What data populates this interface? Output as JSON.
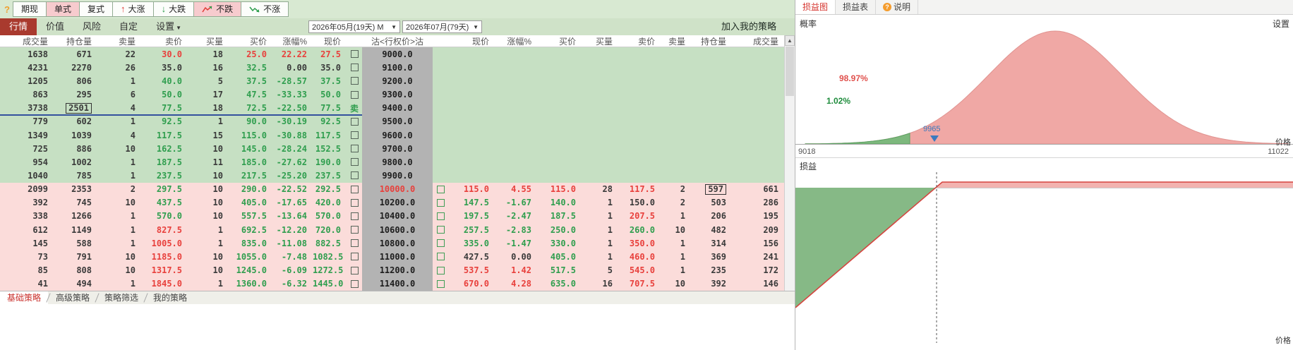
{
  "app": {
    "help_icon": "?"
  },
  "toolbar": {
    "buttons": [
      {
        "label": "期现",
        "active": false
      },
      {
        "label": "单式",
        "active": true
      },
      {
        "label": "复式",
        "active": false
      },
      {
        "label": "大涨",
        "active": false,
        "icon": "up-arrow"
      },
      {
        "label": "大跌",
        "active": false,
        "icon": "down-arrow"
      },
      {
        "label": "不跌",
        "active": true,
        "icon": "trend-up"
      },
      {
        "label": "不涨",
        "active": false,
        "icon": "trend-down"
      }
    ]
  },
  "menubar": {
    "items": [
      {
        "label": "行情",
        "active": true
      },
      {
        "label": "价值",
        "active": false
      },
      {
        "label": "风险",
        "active": false
      },
      {
        "label": "自定",
        "active": false
      },
      {
        "label": "设置",
        "active": false,
        "dropdown": true
      }
    ],
    "expiry_selects": [
      "2026年05月(19天) M",
      "2026年07月(79天)"
    ],
    "add_to_strategy": "加入我的策略"
  },
  "table": {
    "headers_left": [
      "成交量",
      "持仓量",
      "卖量",
      "卖价",
      "买量",
      "买价",
      "涨幅%",
      "现价"
    ],
    "header_strike": "沽<行权价>沽",
    "headers_right": [
      "现价",
      "涨幅%",
      "买价",
      "买量",
      "卖价",
      "卖量",
      "持仓量",
      "成交量"
    ],
    "sell_marker": "卖",
    "rows": [
      {
        "strike": "9000.0",
        "sc": "k",
        "check": "box",
        "sep": false,
        "call": [
          "1638|k",
          "671|k",
          "22|k",
          "30.0|r",
          "18|k",
          "25.0|r",
          "22.22|r",
          "27.5|r"
        ],
        "put": []
      },
      {
        "strike": "9100.0",
        "sc": "k",
        "check": "box",
        "sep": false,
        "call": [
          "4231|k",
          "2270|k",
          "26|k",
          "35.0|k",
          "16|k",
          "32.5|g",
          "0.00|k",
          "35.0|k"
        ],
        "put": []
      },
      {
        "strike": "9200.0",
        "sc": "k",
        "check": "box",
        "sep": false,
        "call": [
          "1205|k",
          "806|k",
          "1|k",
          "40.0|g",
          "5|k",
          "37.5|g",
          "-28.57|g",
          "37.5|g"
        ],
        "put": []
      },
      {
        "strike": "9300.0",
        "sc": "k",
        "check": "box",
        "sep": false,
        "call": [
          "863|k",
          "295|k",
          "6|k",
          "50.0|g",
          "17|k",
          "47.5|g",
          "-33.33|g",
          "50.0|g"
        ],
        "put": []
      },
      {
        "strike": "9400.0",
        "sc": "k",
        "check": "sell",
        "sep": true,
        "call": [
          "3738|k",
          "2501|k|b",
          "4|k",
          "77.5|g",
          "18|k",
          "72.5|g",
          "-22.50|g",
          "77.5|g"
        ],
        "put": []
      },
      {
        "strike": "9500.0",
        "sc": "k",
        "check": "box",
        "sep": false,
        "call": [
          "779|k",
          "602|k",
          "1|k",
          "92.5|g",
          "1|k",
          "90.0|g",
          "-30.19|g",
          "92.5|g"
        ],
        "put": []
      },
      {
        "strike": "9600.0",
        "sc": "k",
        "check": "box",
        "sep": false,
        "call": [
          "1349|k",
          "1039|k",
          "4|k",
          "117.5|g",
          "15|k",
          "115.0|g",
          "-30.88|g",
          "117.5|g"
        ],
        "put": []
      },
      {
        "strike": "9700.0",
        "sc": "k",
        "check": "box",
        "sep": false,
        "call": [
          "725|k",
          "886|k",
          "10|k",
          "162.5|g",
          "10|k",
          "145.0|g",
          "-28.24|g",
          "152.5|g"
        ],
        "put": []
      },
      {
        "strike": "9800.0",
        "sc": "k",
        "check": "box",
        "sep": false,
        "call": [
          "954|k",
          "1002|k",
          "1|k",
          "187.5|g",
          "11|k",
          "185.0|g",
          "-27.62|g",
          "190.0|g"
        ],
        "put": []
      },
      {
        "strike": "9900.0",
        "sc": "k",
        "check": "box",
        "sep": false,
        "call": [
          "1040|k",
          "785|k",
          "1|k",
          "237.5|g",
          "10|k",
          "217.5|g",
          "-25.20|g",
          "237.5|g"
        ],
        "put": []
      },
      {
        "strike": "10000.0",
        "sc": "r",
        "check": "box",
        "sep": false,
        "call": [
          "2099|k",
          "2353|k",
          "2|k",
          "297.5|g",
          "10|k",
          "290.0|g",
          "-22.52|g",
          "292.5|g"
        ],
        "put": [
          "115.0|r",
          "4.55|r",
          "115.0|r",
          "28|k",
          "117.5|r",
          "2|k",
          "597|k|b",
          "661|k"
        ]
      },
      {
        "strike": "10200.0",
        "sc": "k",
        "check": "box",
        "sep": false,
        "call": [
          "392|k",
          "745|k",
          "10|k",
          "437.5|g",
          "10|k",
          "405.0|g",
          "-17.65|g",
          "420.0|g"
        ],
        "put": [
          "147.5|g",
          "-1.67|g",
          "140.0|g",
          "1|k",
          "150.0|k",
          "2|k",
          "503|k",
          "286|k"
        ]
      },
      {
        "strike": "10400.0",
        "sc": "k",
        "check": "box",
        "sep": false,
        "call": [
          "338|k",
          "1266|k",
          "1|k",
          "570.0|g",
          "10|k",
          "557.5|g",
          "-13.64|g",
          "570.0|g"
        ],
        "put": [
          "197.5|g",
          "-2.47|g",
          "187.5|g",
          "1|k",
          "207.5|r",
          "1|k",
          "206|k",
          "195|k"
        ]
      },
      {
        "strike": "10600.0",
        "sc": "k",
        "check": "box",
        "sep": false,
        "call": [
          "612|k",
          "1149|k",
          "1|k",
          "827.5|r",
          "1|k",
          "692.5|g",
          "-12.20|g",
          "720.0|g"
        ],
        "put": [
          "257.5|g",
          "-2.83|g",
          "250.0|g",
          "1|k",
          "260.0|g",
          "10|k",
          "482|k",
          "209|k"
        ]
      },
      {
        "strike": "10800.0",
        "sc": "k",
        "check": "box",
        "sep": false,
        "call": [
          "145|k",
          "588|k",
          "1|k",
          "1005.0|r",
          "1|k",
          "835.0|g",
          "-11.08|g",
          "882.5|g"
        ],
        "put": [
          "335.0|g",
          "-1.47|g",
          "330.0|g",
          "1|k",
          "350.0|r",
          "1|k",
          "314|k",
          "156|k"
        ]
      },
      {
        "strike": "11000.0",
        "sc": "k",
        "check": "box",
        "sep": false,
        "call": [
          "73|k",
          "791|k",
          "10|k",
          "1185.0|r",
          "10|k",
          "1055.0|g",
          "-7.48|g",
          "1082.5|g"
        ],
        "put": [
          "427.5|k",
          "0.00|k",
          "405.0|g",
          "1|k",
          "460.0|r",
          "1|k",
          "369|k",
          "241|k"
        ]
      },
      {
        "strike": "11200.0",
        "sc": "k",
        "check": "box",
        "sep": false,
        "call": [
          "85|k",
          "808|k",
          "10|k",
          "1317.5|r",
          "10|k",
          "1245.0|g",
          "-6.09|g",
          "1272.5|g"
        ],
        "put": [
          "537.5|r",
          "1.42|r",
          "517.5|g",
          "5|k",
          "545.0|r",
          "1|k",
          "235|k",
          "172|k"
        ]
      },
      {
        "strike": "11400.0",
        "sc": "k",
        "check": "box",
        "sep": false,
        "call": [
          "41|k",
          "494|k",
          "1|k",
          "1845.0|r",
          "1|k",
          "1360.0|g",
          "-6.32|g",
          "1445.0|g"
        ],
        "put": [
          "670.0|r",
          "4.28|r",
          "635.0|g",
          "16|k",
          "707.5|r",
          "10|k",
          "392|k",
          "146|k"
        ]
      }
    ]
  },
  "sheet_tabs": [
    {
      "label": "基础策略",
      "active": true
    },
    {
      "label": "高级策略",
      "active": false
    },
    {
      "label": "策略筛选",
      "active": false
    },
    {
      "label": "我的策略",
      "active": false
    }
  ],
  "panel": {
    "tabs": [
      {
        "label": "损益图",
        "active": true
      },
      {
        "label": "损益表",
        "active": false
      },
      {
        "label": "说明",
        "active": false,
        "icon": "help"
      }
    ],
    "probability_label": "概率",
    "settings_label": "设置",
    "prob_above": "98.97%",
    "prob_below": "1.02%",
    "marked_price": "9965",
    "axis_min": "9018",
    "axis_max": "11022",
    "price_label": "价格",
    "payoff_label": "损益",
    "payoff_price_label": "价格"
  },
  "chart_data": [
    {
      "type": "area",
      "name": "probability_distribution",
      "title": "概率",
      "xlabel": "价格",
      "x_axis_labels": [
        9018,
        11022
      ],
      "marked_price": 9965,
      "shape": "bell-curve",
      "regions": [
        {
          "label": "98.97%",
          "role": "red-body-area"
        },
        {
          "label": "1.02%",
          "role": "green-left-tail"
        }
      ]
    },
    {
      "type": "line",
      "name": "payoff_diagram",
      "title": "损益",
      "xlabel": "价格",
      "description": "Strategy P/L: linearly increasing loss (green filled triangle) below the marked price, flat capped profit (red line with pink band) right of the vertical dashed line at the marked price."
    }
  ],
  "colors": {
    "up": "#e8403c",
    "down": "#2f9e4e",
    "flat": "#3a3a3a",
    "active_menu_tab": "#a93a2e",
    "row_green": "#c6e0c3",
    "row_pink": "#fbdcda",
    "strike_col": "#b3b3b3",
    "curve_pink": "#f0a8a5",
    "curve_green": "#7db87d",
    "marker_blue": "#3a7abf",
    "separator_blue": "#33519e",
    "payoff_red": "#d5443f",
    "payoff_band": "#f2b3b0",
    "payoff_green": "#86b986"
  }
}
